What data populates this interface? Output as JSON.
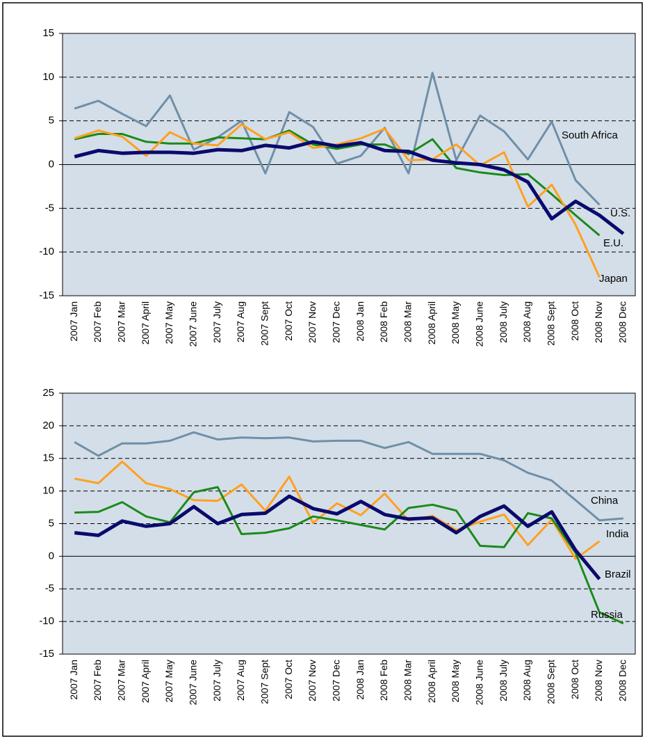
{
  "chart_data": [
    {
      "type": "line",
      "categories": [
        "2007 Jan",
        "2007 Feb",
        "2007 Mar",
        "2007 April",
        "2007 May",
        "2007 June",
        "2007 July",
        "2007 Aug",
        "2007 Sept",
        "2007 Oct",
        "2007 Nov",
        "2007 Dec",
        "2008 Jan",
        "2008 Feb",
        "2008 Mar",
        "2008 April",
        "2008 May",
        "2008 June",
        "2008 July",
        "2008 Aug",
        "2008 Sept",
        "2008 Oct",
        "2008 Nov",
        "2008 Dec"
      ],
      "series": [
        {
          "name": "South Africa",
          "color": "#6f8fa8",
          "values": [
            6.4,
            7.3,
            5.8,
            4.4,
            7.9,
            1.7,
            3.1,
            5.0,
            -1.0,
            6.0,
            4.3,
            0.1,
            1.0,
            4.2,
            -1.0,
            10.5,
            0.5,
            5.6,
            3.8,
            0.6,
            4.9,
            -1.8,
            -4.6,
            null
          ]
        },
        {
          "name": "E.U.",
          "color": "#1a8a1a",
          "values": [
            2.9,
            3.5,
            3.5,
            2.6,
            2.4,
            2.4,
            3.1,
            3.0,
            2.9,
            3.9,
            2.3,
            1.8,
            2.3,
            2.3,
            1.2,
            2.9,
            -0.4,
            -0.9,
            -1.2,
            -1.1,
            -3.4,
            -5.8,
            -8.1,
            null
          ]
        },
        {
          "name": "Japan",
          "color": "#ffa020",
          "values": [
            3.0,
            3.9,
            3.2,
            1.0,
            3.7,
            2.4,
            2.2,
            4.6,
            2.9,
            3.7,
            1.9,
            2.3,
            3.0,
            4.1,
            0.5,
            0.6,
            2.3,
            -0.1,
            1.4,
            -4.8,
            -2.3,
            -6.9,
            -12.9,
            null
          ]
        },
        {
          "name": "U.S.",
          "color": "#0a0a6e",
          "values": [
            0.9,
            1.6,
            1.3,
            1.4,
            1.4,
            1.3,
            1.7,
            1.6,
            2.2,
            1.9,
            2.6,
            2.1,
            2.5,
            1.6,
            1.5,
            0.5,
            0.2,
            0.0,
            -0.6,
            -2.0,
            -6.2,
            -4.2,
            -5.8,
            -7.9
          ]
        }
      ],
      "ylim": [
        -15,
        15
      ],
      "yticks": [
        -15,
        -10,
        -5,
        0,
        5,
        10,
        15
      ],
      "grid": true
    },
    {
      "type": "line",
      "categories": [
        "2007 Jan",
        "2007 Feb",
        "2007 Mar",
        "2007 April",
        "2007 May",
        "2007 June",
        "2007 July",
        "2007 Aug",
        "2007 Sept",
        "2007 Oct",
        "2007 Nov",
        "2007 Dec",
        "2008 Jan",
        "2008 Feb",
        "2008 Mar",
        "2008 April",
        "2008 May",
        "2008 June",
        "2008 July",
        "2008 Aug",
        "2008 Sept",
        "2008 Oct",
        "2008 Nov",
        "2008 Dec"
      ],
      "series": [
        {
          "name": "China",
          "color": "#6f8fa8",
          "values": [
            17.5,
            15.4,
            17.3,
            17.3,
            17.7,
            19.0,
            17.9,
            18.2,
            18.1,
            18.2,
            17.6,
            17.7,
            17.7,
            16.6,
            17.5,
            15.7,
            15.7,
            15.7,
            14.7,
            12.8,
            11.6,
            8.6,
            5.5,
            5.8
          ]
        },
        {
          "name": "India",
          "color": "#ffa020",
          "values": [
            11.9,
            11.2,
            14.5,
            11.2,
            10.3,
            8.6,
            8.5,
            11.0,
            7.0,
            12.2,
            5.1,
            8.1,
            6.3,
            9.6,
            5.5,
            6.2,
            4.0,
            5.3,
            6.4,
            1.7,
            5.6,
            -0.4,
            2.3,
            null
          ]
        },
        {
          "name": "Russia",
          "color": "#1a8a1a",
          "values": [
            6.7,
            6.8,
            8.3,
            6.1,
            5.2,
            9.8,
            10.6,
            3.4,
            3.6,
            4.3,
            6.1,
            5.5,
            4.8,
            4.1,
            7.4,
            7.9,
            7.0,
            1.6,
            1.4,
            6.6,
            5.8,
            0.5,
            -8.6,
            -10.3
          ]
        },
        {
          "name": "Brazil",
          "color": "#0a0a6e",
          "values": [
            3.6,
            3.2,
            5.4,
            4.6,
            5.0,
            7.6,
            5.0,
            6.4,
            6.6,
            9.2,
            7.3,
            6.5,
            8.4,
            6.4,
            5.7,
            5.9,
            3.6,
            6.1,
            7.7,
            4.6,
            6.8,
            0.9,
            -3.5,
            null
          ]
        }
      ],
      "ylim": [
        -15,
        25
      ],
      "yticks": [
        -15,
        -10,
        -5,
        0,
        5,
        10,
        15,
        20,
        25
      ],
      "grid": true
    }
  ]
}
